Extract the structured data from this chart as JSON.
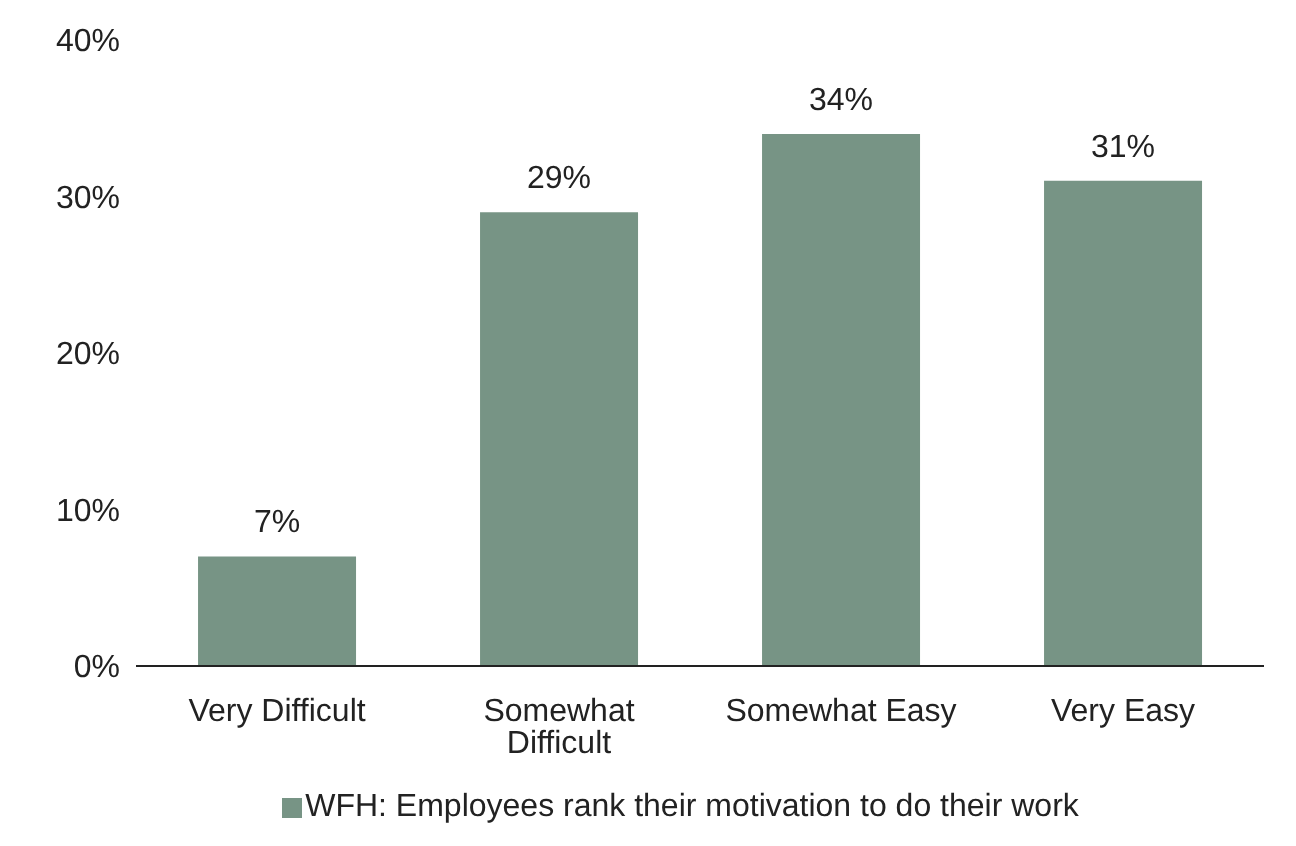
{
  "chart_data": {
    "type": "bar",
    "categories": [
      "Very Difficult",
      "Somewhat Difficult",
      "Somewhat Easy",
      "Very Easy"
    ],
    "series": [
      {
        "name": "WFH: Employees rank their motivation to do their work",
        "color": "#779485",
        "values": [
          7,
          29,
          34,
          31
        ],
        "value_labels": [
          "7%",
          "29%",
          "34%",
          "31%"
        ]
      }
    ],
    "ylim": [
      0,
      40
    ],
    "yticks": [
      {
        "value": 0,
        "label": "0%"
      },
      {
        "value": 10,
        "label": "10%"
      },
      {
        "value": 20,
        "label": "20%"
      },
      {
        "value": 30,
        "label": "30%"
      },
      {
        "value": 40,
        "label": "40%"
      }
    ],
    "grid": false,
    "legend": "bottom"
  }
}
